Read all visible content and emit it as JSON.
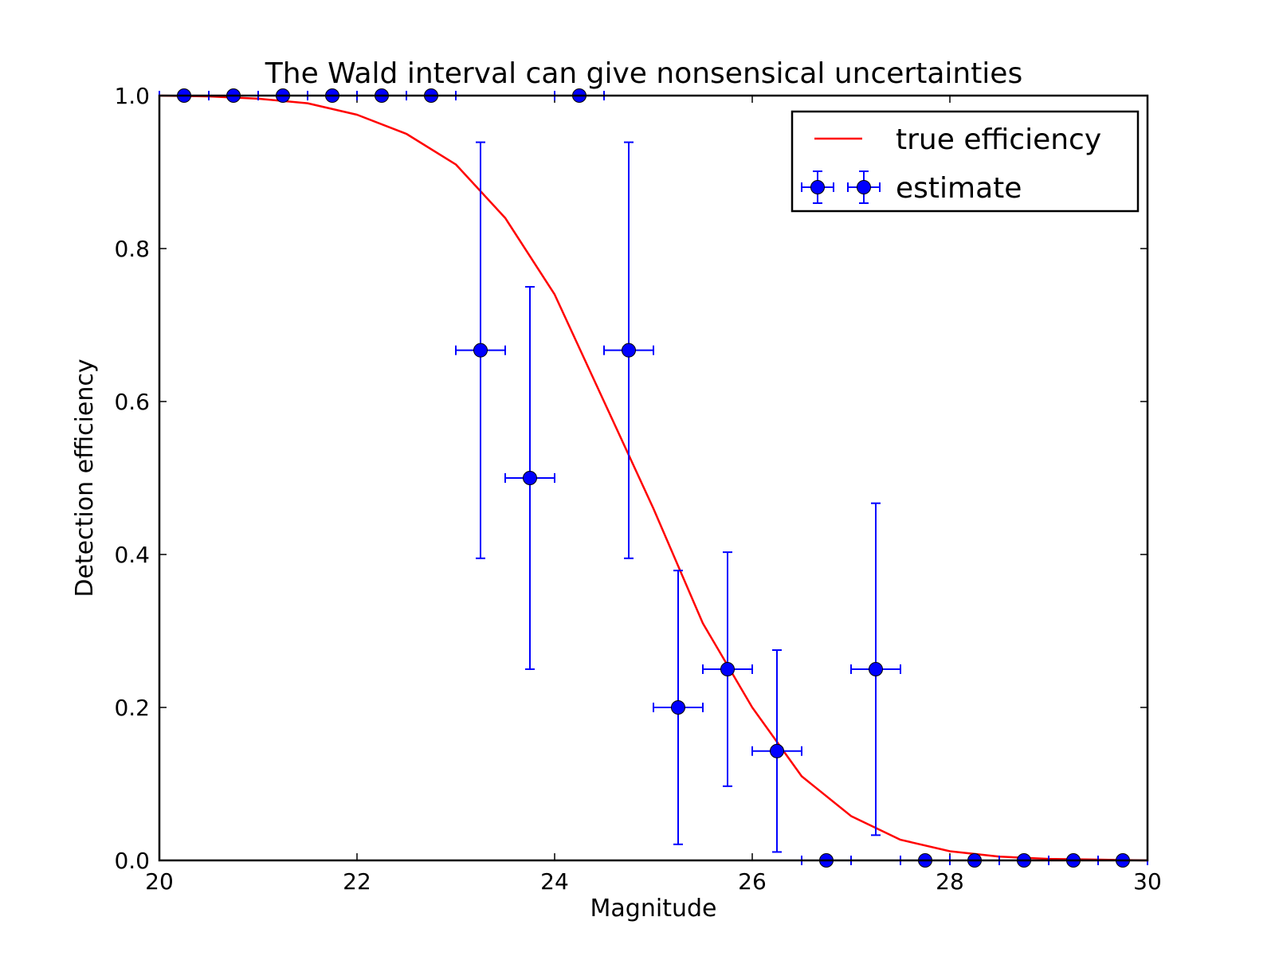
{
  "chart_data": {
    "type": "scatter",
    "title": "The Wald interval can give nonsensical uncertainties",
    "xlabel": "Magnitude",
    "ylabel": "Detection efficiency",
    "xlim": [
      20,
      30
    ],
    "ylim": [
      0.0,
      1.0
    ],
    "xticks": [
      "20",
      "22",
      "24",
      "26",
      "28",
      "30"
    ],
    "xtick_values": [
      20,
      22,
      24,
      26,
      28,
      30
    ],
    "yticks": [
      "0.0",
      "0.2",
      "0.4",
      "0.6",
      "0.8",
      "1.0"
    ],
    "ytick_values": [
      0.0,
      0.2,
      0.4,
      0.6,
      0.8,
      1.0
    ],
    "grid": false,
    "legend_position": "top-right",
    "series": [
      {
        "name": "true efficiency",
        "kind": "line",
        "color": "#ff0000",
        "x": [
          20.0,
          20.5,
          21.0,
          21.5,
          22.0,
          22.5,
          23.0,
          23.5,
          24.0,
          24.5,
          25.0,
          25.5,
          26.0,
          26.5,
          27.0,
          27.5,
          28.0,
          28.5,
          29.0,
          29.5,
          30.0
        ],
        "y": [
          1.0,
          0.999,
          0.996,
          0.99,
          0.975,
          0.95,
          0.91,
          0.84,
          0.74,
          0.6,
          0.46,
          0.31,
          0.2,
          0.11,
          0.058,
          0.027,
          0.012,
          0.005,
          0.002,
          0.001,
          0.0
        ]
      },
      {
        "name": "estimate",
        "kind": "errorbar",
        "color": "#0000ff",
        "x": [
          20.25,
          20.75,
          21.25,
          21.75,
          22.25,
          22.75,
          23.25,
          23.75,
          24.25,
          24.75,
          25.25,
          25.75,
          26.25,
          26.75,
          27.25,
          27.75,
          28.25,
          28.75,
          29.25,
          29.75
        ],
        "y": [
          1.0,
          1.0,
          1.0,
          1.0,
          1.0,
          1.0,
          0.667,
          0.5,
          1.0,
          0.667,
          0.2,
          0.25,
          0.143,
          0.0,
          0.25,
          0.0,
          0.0,
          0.0,
          0.0,
          0.0
        ],
        "yerr": [
          0.0,
          0.0,
          0.0,
          0.0,
          0.0,
          0.0,
          0.272,
          0.25,
          0.0,
          0.272,
          0.179,
          0.153,
          0.132,
          0.0,
          0.217,
          0.0,
          0.0,
          0.0,
          0.0,
          0.0
        ],
        "xerr": 0.25
      }
    ]
  }
}
